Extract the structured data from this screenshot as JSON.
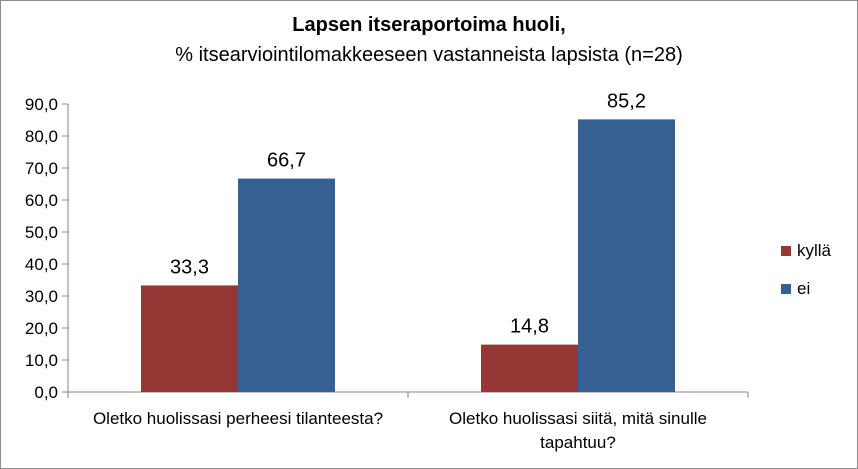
{
  "chart_data": {
    "type": "bar",
    "title": "Lapsen itseraportoima huoli,",
    "subtitle": "% itsearviointilomakkeeseen vastanneista lapsista (n=28)",
    "categories": [
      [
        "Oletko huolissasi perheesi tilanteesta?"
      ],
      [
        "Oletko huolissasi siitä, mitä sinulle",
        "tapahtuu?"
      ]
    ],
    "series": [
      {
        "name": "kyllä",
        "color": "#953735",
        "values": [
          33.3,
          14.8
        ]
      },
      {
        "name": "ei",
        "color": "#376092",
        "values": [
          66.7,
          85.2
        ]
      }
    ],
    "ylim": [
      0,
      90
    ],
    "yticks": [
      0,
      10,
      20,
      30,
      40,
      50,
      60,
      70,
      80,
      90
    ],
    "grid": false,
    "legend": "right",
    "decimal_separator": ","
  }
}
